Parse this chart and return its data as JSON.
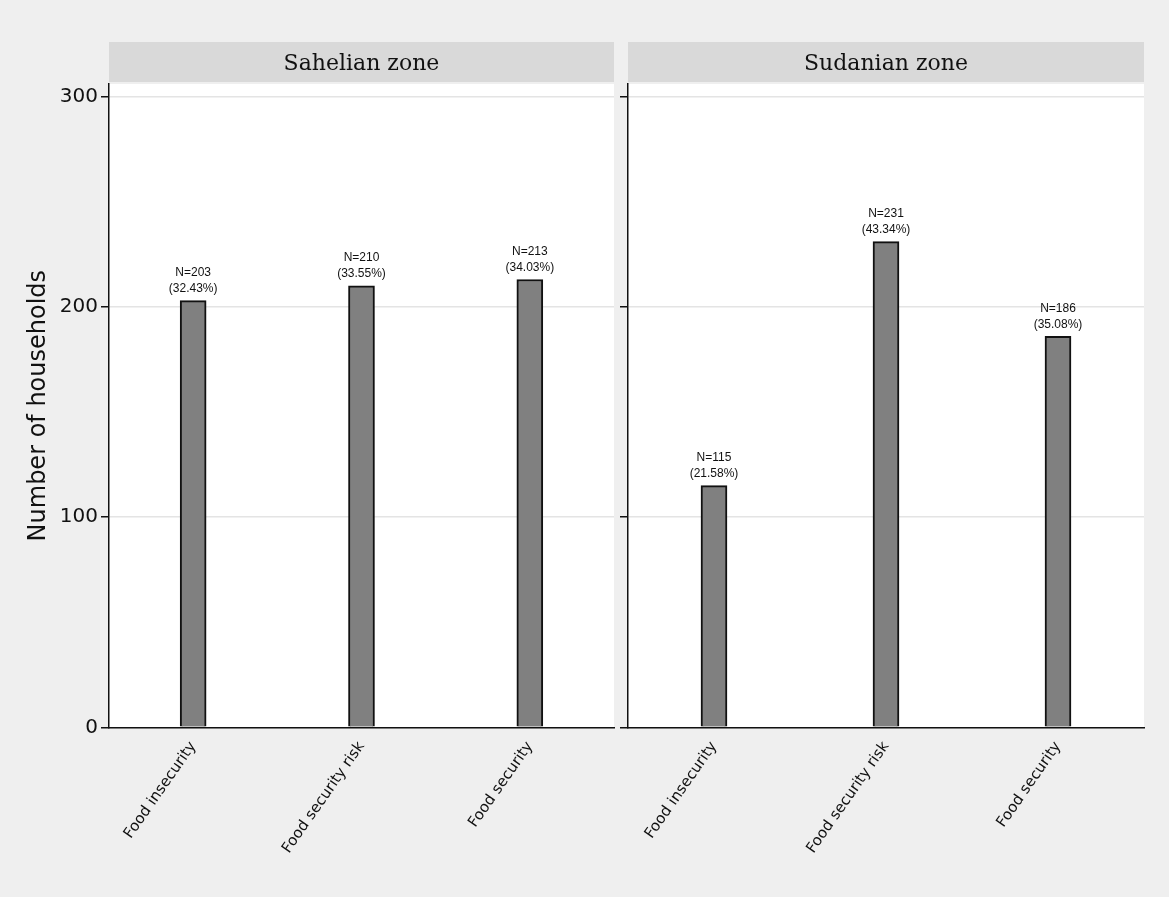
{
  "chart_data": [
    {
      "type": "bar",
      "title": "Sahelian zone",
      "ylabel": "Number of households",
      "categories": [
        "Food insecurity",
        "Food security risk",
        "Food security"
      ],
      "values": [
        203,
        210,
        213
      ],
      "color": "#808080",
      "value_labels": [
        "N=203\n(32.43%)",
        "N=210\n(33.55%)",
        "N=213\n(34.03%)"
      ],
      "ylim": [
        0,
        306
      ],
      "yticks": [
        0,
        100,
        200,
        300
      ],
      "grid": "y"
    },
    {
      "type": "bar",
      "title": "Sudanian zone",
      "categories": [
        "Food insecurity",
        "Food security risk",
        "Food security"
      ],
      "values": [
        115,
        231,
        186
      ],
      "color": "#808080",
      "value_labels": [
        "N=115\n(21.58%)",
        "N=231\n(43.34%)",
        "N=186\n(35.08%)"
      ],
      "ylim": [
        0,
        306
      ],
      "yticks": [
        0,
        100,
        200,
        300
      ],
      "grid": "y",
      "tick_labels": "x"
    }
  ]
}
